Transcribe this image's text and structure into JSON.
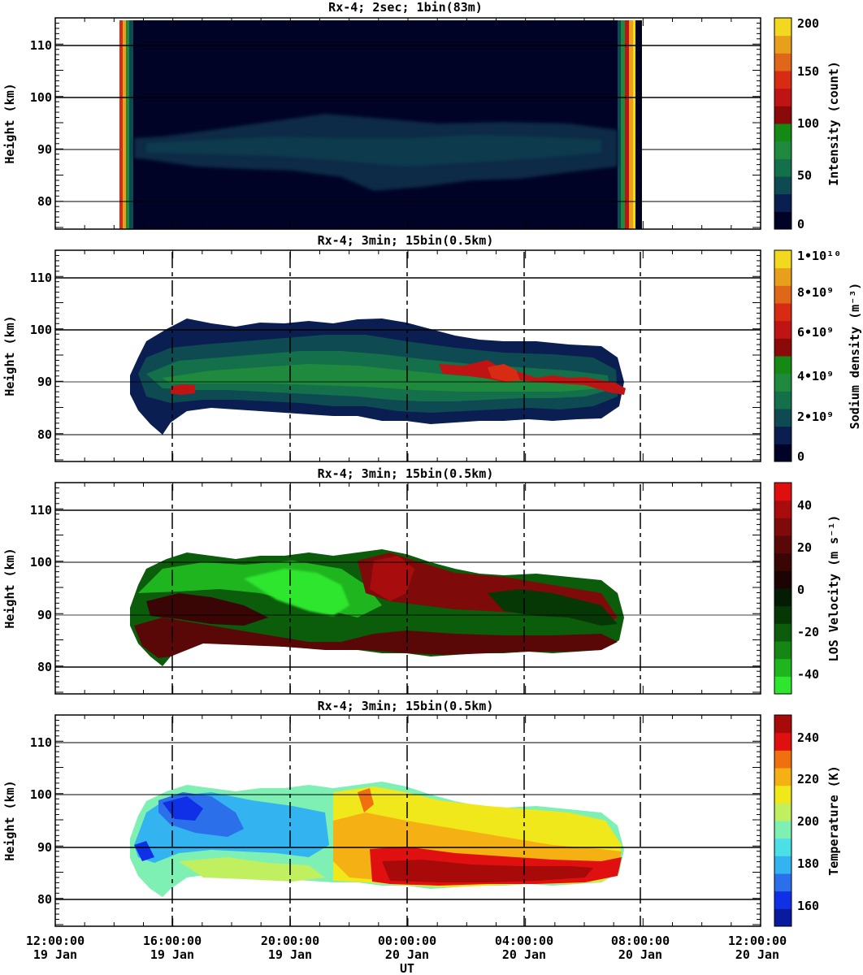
{
  "chart_data": [
    {
      "type": "heatmap",
      "title": "Rx-4;  2sec; 1bin(83m)",
      "ylabel": "Height (km)",
      "ylim": [
        75,
        115
      ],
      "yticks": [
        "80",
        "90",
        "100",
        "110"
      ],
      "colorbar": {
        "label": "Intensity (count)",
        "ticks": [
          "0",
          "50",
          "100",
          "150",
          "200"
        ],
        "colors": [
          "#000326",
          "#0a1e52",
          "#0d4a52",
          "#14704a",
          "#1f8a3d",
          "#148a14",
          "#8a0a0a",
          "#c01414",
          "#d82b14",
          "#e0661a",
          "#e8a01c",
          "#f2d81f"
        ]
      },
      "data_window": [
        "14:30:00 19 Jan",
        "07:30:00 20 Jan"
      ],
      "layer_range_km": [
        82,
        95
      ],
      "grid": true
    },
    {
      "type": "heatmap",
      "title": "Rx-4; 3min; 15bin(0.5km)",
      "ylabel": "Height (km)",
      "ylim": [
        75,
        115
      ],
      "yticks": [
        "80",
        "90",
        "100",
        "110"
      ],
      "colorbar": {
        "label": "Sodium density (m⁻³)",
        "ticks": [
          "0",
          "2•10⁹",
          "4•10⁹",
          "6•10⁹",
          "8•10⁹",
          "1•10¹⁰"
        ],
        "colors": [
          "#000326",
          "#0a1e52",
          "#0d4a52",
          "#14704a",
          "#1f8a3d",
          "#148a14",
          "#8a0a0a",
          "#c01414",
          "#d82b14",
          "#e0661a",
          "#e8a01c",
          "#f2d81f"
        ]
      },
      "grid": true
    },
    {
      "type": "heatmap",
      "title": "Rx-4; 3min; 15bin(0.5km)",
      "ylabel": "Height (km)",
      "ylim": [
        75,
        115
      ],
      "yticks": [
        "80",
        "90",
        "100",
        "110"
      ],
      "colorbar": {
        "label": "LOS Velocity (m s⁻¹)",
        "ticks": [
          "-40",
          "-20",
          "0",
          "20",
          "40"
        ],
        "colors": [
          "#2ee62e",
          "#1fb51f",
          "#138613",
          "#0b5c0b",
          "#063806",
          "#041c04",
          "#1c0404",
          "#3a0505",
          "#5a0707",
          "#7e0a0a",
          "#a80c0c",
          "#e00f0f"
        ]
      },
      "grid": true
    },
    {
      "type": "heatmap",
      "title": "Rx-4; 3min; 15bin(0.5km)",
      "ylabel": "Height (km)",
      "ylim": [
        75,
        115
      ],
      "yticks": [
        "80",
        "90",
        "100",
        "110"
      ],
      "colorbar": {
        "label": "Temperature (K)",
        "ticks": [
          "160",
          "180",
          "200",
          "220",
          "240"
        ],
        "colors": [
          "#0a1a9e",
          "#0f30e6",
          "#2b6fea",
          "#33b4f0",
          "#4be0e6",
          "#7ef0b4",
          "#c0f060",
          "#f0e81a",
          "#f5b014",
          "#f07010",
          "#e01010",
          "#a80a0a"
        ]
      },
      "grid": true
    }
  ],
  "x_axis": {
    "label": "UT",
    "tick_times": [
      "12:00:00",
      "16:00:00",
      "20:00:00",
      "00:00:00",
      "04:00:00",
      "08:00:00",
      "12:00:00"
    ],
    "tick_dates": [
      "19 Jan",
      "19 Jan",
      "19 Jan",
      "20 Jan",
      "20 Jan",
      "20 Jan",
      "20 Jan"
    ]
  }
}
